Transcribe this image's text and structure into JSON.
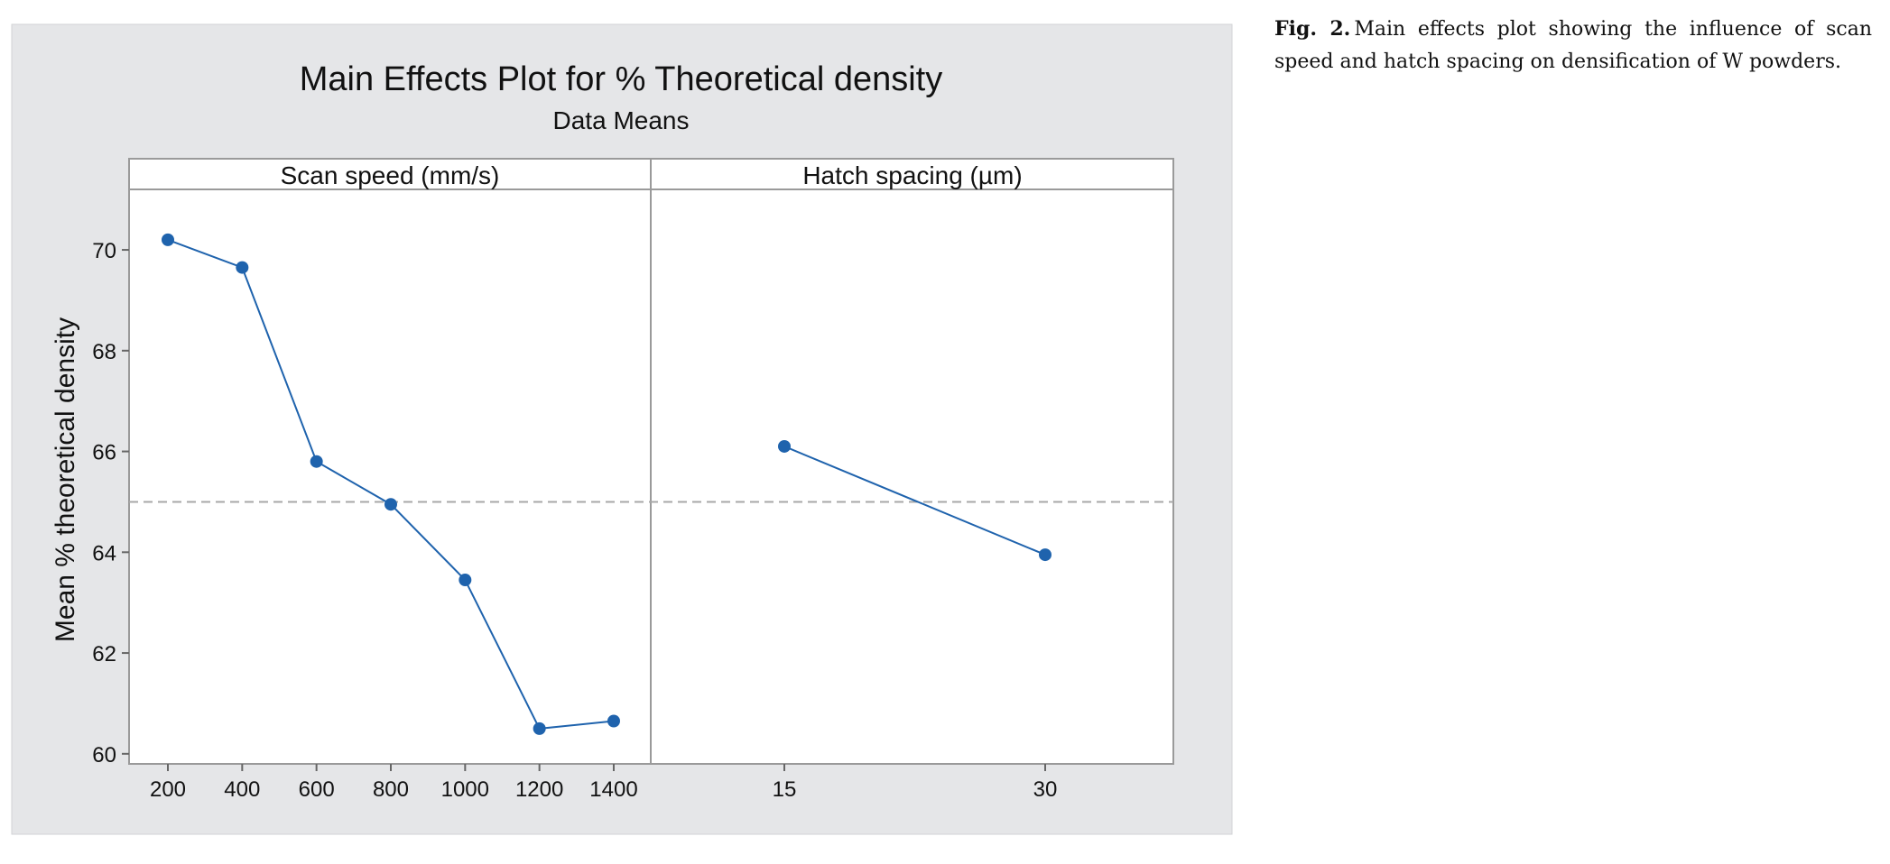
{
  "chart_data": {
    "type": "line",
    "title": "Main Effects Plot for % Theoretical density",
    "subtitle": "Data Means",
    "ylabel": "Mean % theoretical density",
    "ylim": [
      59.8,
      71.2
    ],
    "yticks": [
      "60",
      "62",
      "64",
      "66",
      "68",
      "70"
    ],
    "reference_line": 65.0,
    "grid": false,
    "colors": {
      "series": "#1f63ad",
      "reference": "#a8a8a8",
      "background": "#e5e6e8"
    },
    "panels": [
      {
        "label": "Scan speed (mm/s)",
        "x": [
          "200",
          "400",
          "600",
          "800",
          "1000",
          "1200",
          "1400"
        ],
        "values": [
          70.2,
          69.65,
          65.8,
          64.95,
          63.45,
          60.5,
          60.65
        ]
      },
      {
        "label": "Hatch spacing (µm)",
        "x": [
          "15",
          "30"
        ],
        "values": [
          66.1,
          63.95
        ]
      }
    ]
  },
  "caption": {
    "label": "Fig. 2.",
    "text": "Main effects plot showing the influence of scan speed and hatch spacing on densification of W powders."
  }
}
